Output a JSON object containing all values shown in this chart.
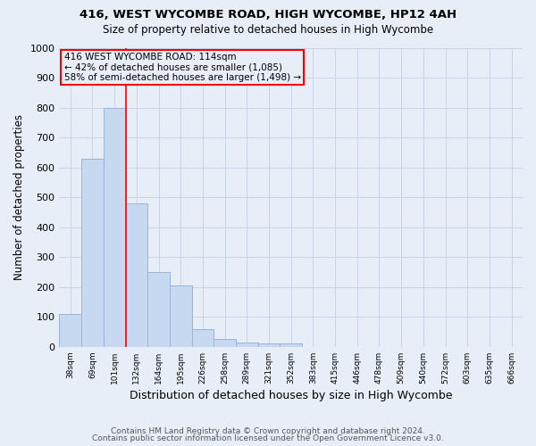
{
  "title1": "416, WEST WYCOMBE ROAD, HIGH WYCOMBE, HP12 4AH",
  "title2": "Size of property relative to detached houses in High Wycombe",
  "xlabel": "Distribution of detached houses by size in High Wycombe",
  "ylabel": "Number of detached properties",
  "categories": [
    "38sqm",
    "69sqm",
    "101sqm",
    "132sqm",
    "164sqm",
    "195sqm",
    "226sqm",
    "258sqm",
    "289sqm",
    "321sqm",
    "352sqm",
    "383sqm",
    "415sqm",
    "446sqm",
    "478sqm",
    "509sqm",
    "540sqm",
    "572sqm",
    "603sqm",
    "635sqm",
    "666sqm"
  ],
  "values": [
    110,
    630,
    800,
    480,
    250,
    205,
    60,
    25,
    15,
    10,
    10,
    0,
    0,
    0,
    0,
    0,
    0,
    0,
    0,
    0,
    0
  ],
  "bar_color": "#c6d9f0",
  "bar_edge_color": "#9ab5d4",
  "grid_color": "#c8d4e8",
  "background_color": "#e8eef8",
  "property_line_x": 2.5,
  "annotation_text": "416 WEST WYCOMBE ROAD: 114sqm\n← 42% of detached houses are smaller (1,085)\n58% of semi-detached houses are larger (1,498) →",
  "ylim": [
    0,
    1000
  ],
  "yticks": [
    0,
    100,
    200,
    300,
    400,
    500,
    600,
    700,
    800,
    900,
    1000
  ],
  "footer1": "Contains HM Land Registry data © Crown copyright and database right 2024.",
  "footer2": "Contains public sector information licensed under the Open Government Licence v3.0."
}
